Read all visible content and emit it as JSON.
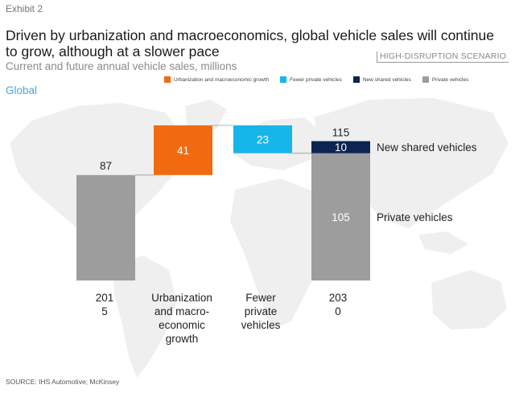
{
  "exhibit": "Exhibit 2",
  "title": "Driven by urbanization and macroeconomics, global vehicle sales will continue to grow, although at a slower pace",
  "subtitle": "Current and future annual vehicle sales, millions",
  "scenario": "HIGH-DISRUPTION SCENARIO",
  "region": "Global",
  "source": "SOURCE: IHS Automotive; McKinsey",
  "colors": {
    "orange": "#f26a10",
    "cyan": "#17b6ea",
    "navy": "#0c2450",
    "gray": "#9d9d9d",
    "map": "#efefef"
  },
  "legend": [
    {
      "label": "Urbanization and macroeconomic growth",
      "color": "#f26a10"
    },
    {
      "label": "Fewer private vehicles",
      "color": "#17b6ea"
    },
    {
      "label": "New shared vehicles",
      "color": "#0c2450"
    },
    {
      "label": "Private vehicles",
      "color": "#9d9d9d"
    }
  ],
  "chart_data": {
    "type": "bar",
    "subtype": "waterfall",
    "categories": [
      "2015",
      "Urbanization and macroeconomic growth",
      "Fewer private vehicles",
      "2030"
    ],
    "category_labels": [
      [
        "201",
        "5"
      ],
      [
        "Urbanization",
        "and macro-",
        "economic",
        "growth"
      ],
      [
        "Fewer",
        "private",
        "vehicles"
      ],
      [
        "203",
        "0"
      ]
    ],
    "bars": [
      {
        "category": "2015",
        "kind": "total",
        "value": 87,
        "label": "87",
        "color": "#9d9d9d"
      },
      {
        "category": "Urbanization and macroeconomic growth",
        "kind": "increase",
        "start": 87,
        "end": 128,
        "value": 41,
        "label": "41",
        "color": "#f26a10"
      },
      {
        "category": "Fewer private vehicles",
        "kind": "decrease",
        "start": 128,
        "end": 105,
        "value": 23,
        "label": "23",
        "color": "#17b6ea"
      },
      {
        "category": "2030",
        "kind": "stacked_total",
        "total": 115,
        "total_label": "115",
        "segments": [
          {
            "name": "Private vehicles",
            "value": 105,
            "label": "105",
            "color": "#9d9d9d"
          },
          {
            "name": "New shared vehicles",
            "value": 10,
            "label": "10",
            "color": "#0c2450"
          }
        ]
      }
    ],
    "annotations": [
      "New shared vehicles",
      "Private vehicles"
    ],
    "ylim": [
      0,
      135
    ],
    "grid": false
  }
}
